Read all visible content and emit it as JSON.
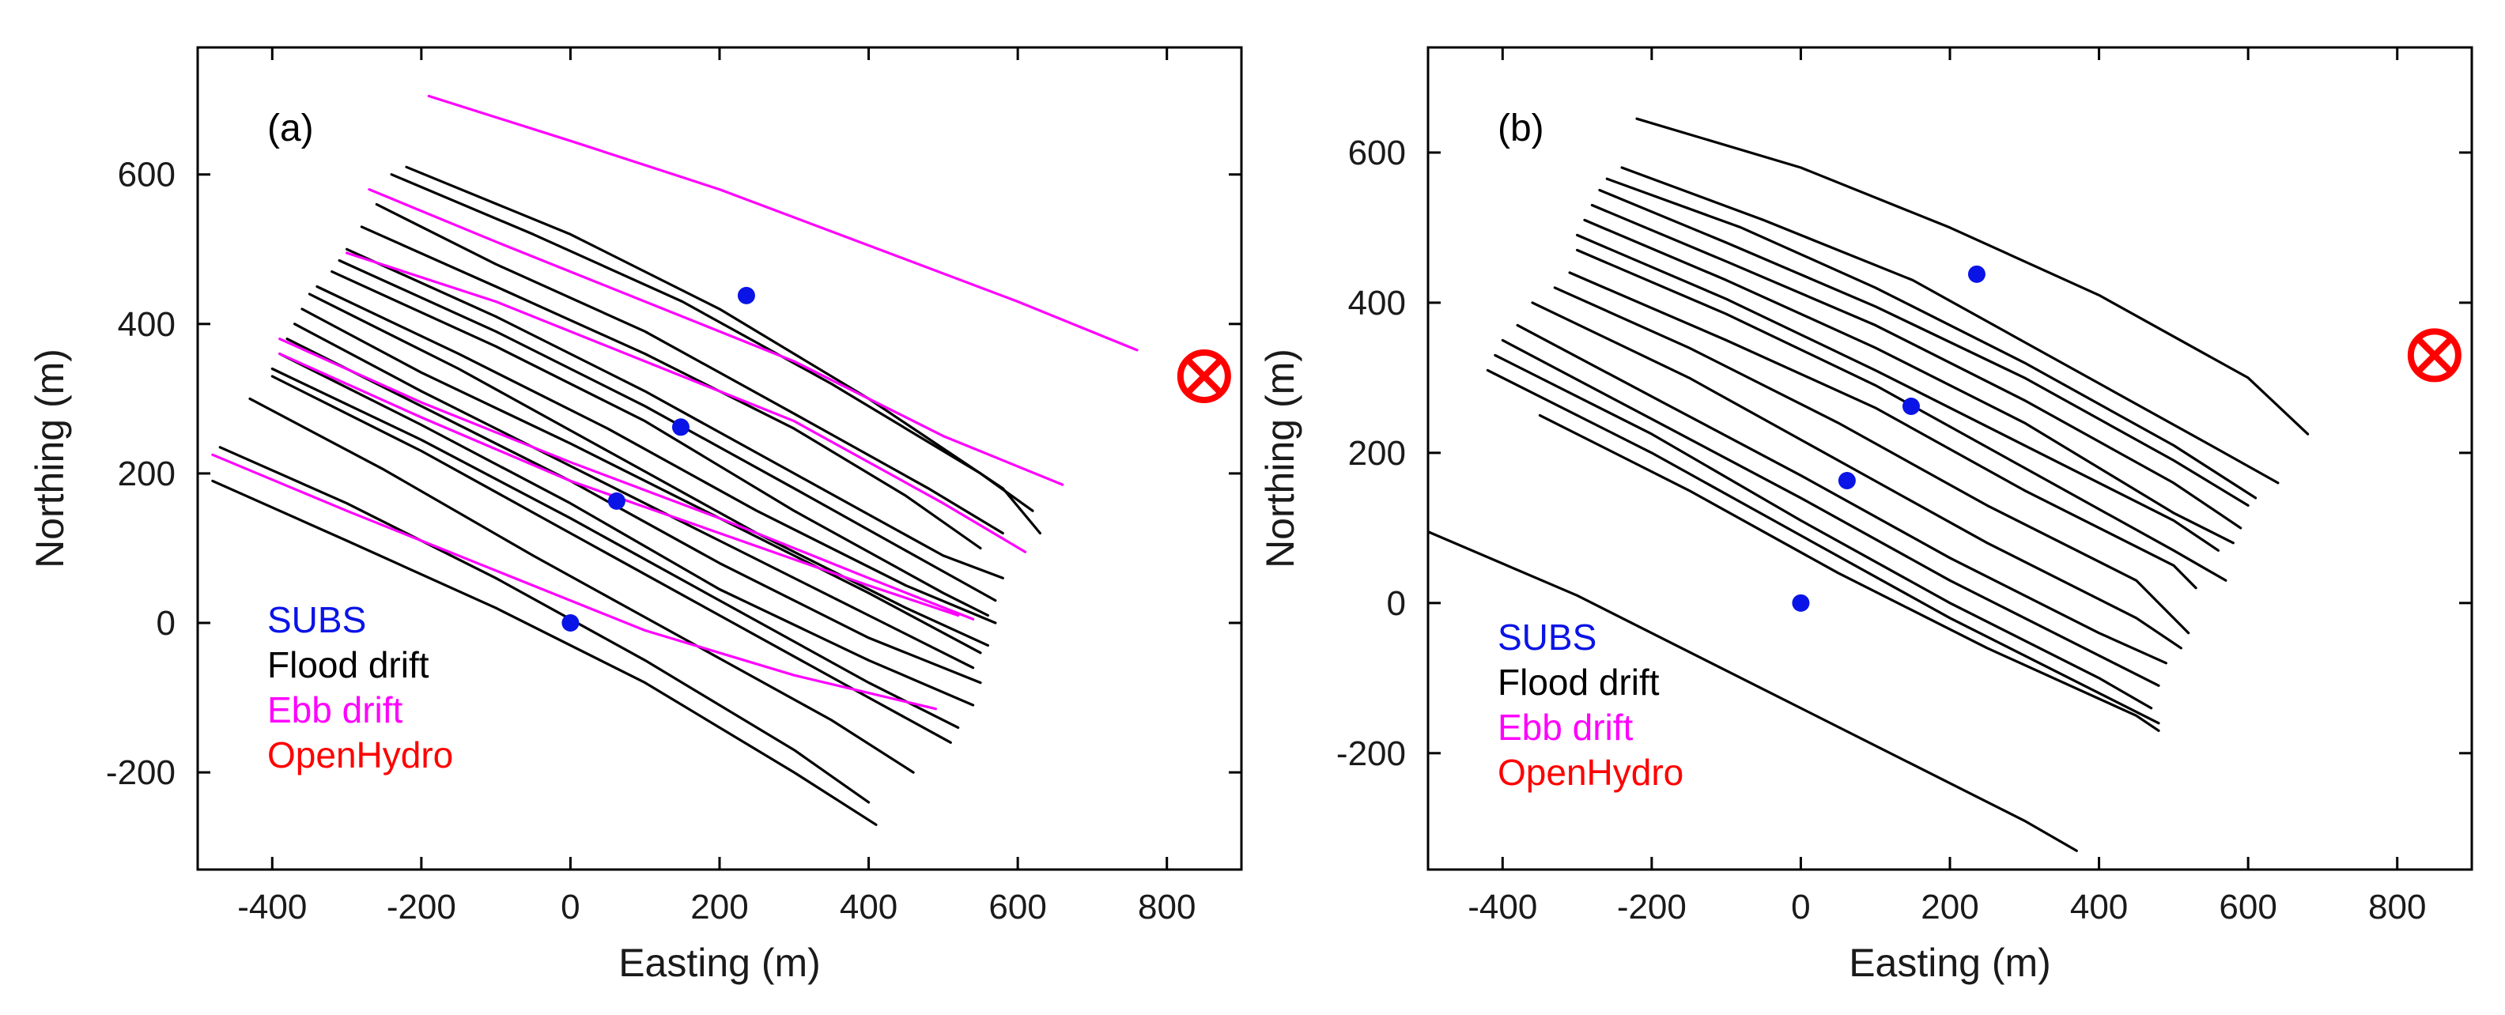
{
  "colors": {
    "subs": "#0a14e6",
    "flood": "#000000",
    "ebb": "#ff00ff",
    "openhydro": "#ff0000"
  },
  "chart_data": [
    {
      "type": "line",
      "panel_label": "(a)",
      "xlabel": "Easting (m)",
      "ylabel": "Northing (m)",
      "xlim": [
        -500,
        900
      ],
      "ylim": [
        -330,
        770
      ],
      "xticks": [
        -400,
        -200,
        0,
        200,
        400,
        600,
        800
      ],
      "yticks": [
        -200,
        0,
        200,
        400,
        600
      ],
      "grid": false,
      "legend": {
        "placement": "lower-left",
        "entries": [
          "SUBS",
          "Flood drift",
          "Ebb drift",
          "OpenHydro"
        ]
      },
      "subs_points": [
        [
          0,
          0
        ],
        [
          62,
          163
        ],
        [
          148,
          262
        ],
        [
          236,
          438
        ]
      ],
      "openhydro_marker": [
        850,
        330
      ],
      "flood_tracks": [
        [
          [
            -480,
            190
          ],
          [
            -300,
            110
          ],
          [
            -100,
            20
          ],
          [
            100,
            -80
          ],
          [
            300,
            -200
          ],
          [
            410,
            -270
          ]
        ],
        [
          [
            -470,
            235
          ],
          [
            -300,
            160
          ],
          [
            -100,
            60
          ],
          [
            100,
            -50
          ],
          [
            300,
            -170
          ],
          [
            400,
            -240
          ]
        ],
        [
          [
            -430,
            300
          ],
          [
            -250,
            205
          ],
          [
            -50,
            90
          ],
          [
            150,
            -20
          ],
          [
            350,
            -130
          ],
          [
            460,
            -200
          ]
        ],
        [
          [
            -400,
            330
          ],
          [
            -200,
            230
          ],
          [
            0,
            120
          ],
          [
            200,
            10
          ],
          [
            400,
            -100
          ],
          [
            510,
            -160
          ]
        ],
        [
          [
            -400,
            340
          ],
          [
            -200,
            245
          ],
          [
            0,
            140
          ],
          [
            200,
            30
          ],
          [
            400,
            -80
          ],
          [
            520,
            -140
          ]
        ],
        [
          [
            -390,
            360
          ],
          [
            -200,
            265
          ],
          [
            0,
            160
          ],
          [
            200,
            45
          ],
          [
            400,
            -50
          ],
          [
            540,
            -110
          ]
        ],
        [
          [
            -380,
            380
          ],
          [
            -200,
            290
          ],
          [
            0,
            190
          ],
          [
            200,
            80
          ],
          [
            400,
            -20
          ],
          [
            550,
            -80
          ]
        ],
        [
          [
            -370,
            400
          ],
          [
            -200,
            310
          ],
          [
            0,
            210
          ],
          [
            200,
            110
          ],
          [
            400,
            10
          ],
          [
            540,
            -60
          ]
        ],
        [
          [
            -360,
            420
          ],
          [
            -200,
            335
          ],
          [
            0,
            240
          ],
          [
            200,
            140
          ],
          [
            400,
            40
          ],
          [
            550,
            -40
          ]
        ],
        [
          [
            -350,
            440
          ],
          [
            -150,
            340
          ],
          [
            50,
            230
          ],
          [
            250,
            120
          ],
          [
            450,
            20
          ],
          [
            560,
            -30
          ]
        ],
        [
          [
            -340,
            450
          ],
          [
            -150,
            360
          ],
          [
            50,
            260
          ],
          [
            250,
            150
          ],
          [
            450,
            50
          ],
          [
            570,
            0
          ]
        ],
        [
          [
            -320,
            470
          ],
          [
            -100,
            370
          ],
          [
            100,
            270
          ],
          [
            300,
            150
          ],
          [
            500,
            40
          ],
          [
            560,
            10
          ]
        ],
        [
          [
            -310,
            485
          ],
          [
            -100,
            390
          ],
          [
            100,
            290
          ],
          [
            300,
            180
          ],
          [
            480,
            80
          ],
          [
            570,
            30
          ]
        ],
        [
          [
            -300,
            500
          ],
          [
            -100,
            410
          ],
          [
            100,
            310
          ],
          [
            300,
            200
          ],
          [
            500,
            90
          ],
          [
            580,
            60
          ]
        ],
        [
          [
            -280,
            530
          ],
          [
            -100,
            450
          ],
          [
            100,
            360
          ],
          [
            300,
            260
          ],
          [
            450,
            170
          ],
          [
            550,
            100
          ]
        ],
        [
          [
            -260,
            560
          ],
          [
            -100,
            480
          ],
          [
            100,
            390
          ],
          [
            300,
            280
          ],
          [
            480,
            180
          ],
          [
            580,
            120
          ]
        ],
        [
          [
            -240,
            600
          ],
          [
            -50,
            520
          ],
          [
            150,
            430
          ],
          [
            350,
            320
          ],
          [
            550,
            200
          ],
          [
            620,
            150
          ]
        ],
        [
          [
            -220,
            610
          ],
          [
            0,
            520
          ],
          [
            200,
            420
          ],
          [
            400,
            300
          ],
          [
            580,
            180
          ],
          [
            630,
            120
          ]
        ]
      ],
      "ebb_tracks": [
        [
          [
            -480,
            225
          ],
          [
            -300,
            150
          ],
          [
            -100,
            70
          ],
          [
            100,
            -10
          ],
          [
            300,
            -70
          ],
          [
            490,
            -115
          ]
        ],
        [
          [
            -390,
            360
          ],
          [
            -200,
            275
          ],
          [
            0,
            190
          ],
          [
            200,
            120
          ],
          [
            400,
            50
          ],
          [
            520,
            10
          ]
        ],
        [
          [
            -390,
            380
          ],
          [
            -200,
            295
          ],
          [
            0,
            215
          ],
          [
            200,
            140
          ],
          [
            400,
            60
          ],
          [
            540,
            5
          ]
        ],
        [
          [
            -300,
            495
          ],
          [
            -100,
            430
          ],
          [
            100,
            350
          ],
          [
            300,
            270
          ],
          [
            500,
            160
          ],
          [
            610,
            95
          ]
        ],
        [
          [
            -270,
            580
          ],
          [
            -100,
            510
          ],
          [
            100,
            430
          ],
          [
            300,
            350
          ],
          [
            500,
            250
          ],
          [
            660,
            185
          ]
        ],
        [
          [
            -190,
            705
          ],
          [
            0,
            645
          ],
          [
            200,
            580
          ],
          [
            400,
            505
          ],
          [
            600,
            430
          ],
          [
            760,
            365
          ]
        ]
      ]
    },
    {
      "type": "line",
      "panel_label": "(b)",
      "xlabel": "Easting (m)",
      "ylabel": "Northing (m)",
      "xlim": [
        -500,
        900
      ],
      "ylim": [
        -355,
        740
      ],
      "xticks": [
        -400,
        -200,
        0,
        200,
        400,
        600,
        800
      ],
      "yticks": [
        -200,
        0,
        200,
        400,
        600
      ],
      "grid": false,
      "legend": {
        "placement": "lower-left",
        "entries": [
          "SUBS",
          "Flood drift",
          "Ebb drift",
          "OpenHydro"
        ]
      },
      "subs_points": [
        [
          0,
          0
        ],
        [
          62,
          163
        ],
        [
          148,
          262
        ],
        [
          236,
          438
        ]
      ],
      "openhydro_marker": [
        850,
        330
      ],
      "flood_tracks": [
        [
          [
            -500,
            95
          ],
          [
            -300,
            10
          ],
          [
            -100,
            -90
          ],
          [
            100,
            -190
          ],
          [
            300,
            -290
          ],
          [
            370,
            -330
          ]
        ],
        [
          [
            -350,
            250
          ],
          [
            -150,
            150
          ],
          [
            50,
            40
          ],
          [
            250,
            -60
          ],
          [
            450,
            -150
          ],
          [
            480,
            -170
          ]
        ],
        [
          [
            -420,
            310
          ],
          [
            -200,
            200
          ],
          [
            0,
            90
          ],
          [
            200,
            -20
          ],
          [
            400,
            -120
          ],
          [
            480,
            -160
          ]
        ],
        [
          [
            -410,
            330
          ],
          [
            -200,
            225
          ],
          [
            0,
            110
          ],
          [
            200,
            0
          ],
          [
            400,
            -100
          ],
          [
            470,
            -140
          ]
        ],
        [
          [
            -400,
            350
          ],
          [
            -200,
            245
          ],
          [
            0,
            140
          ],
          [
            200,
            30
          ],
          [
            400,
            -70
          ],
          [
            480,
            -110
          ]
        ],
        [
          [
            -380,
            370
          ],
          [
            -200,
            275
          ],
          [
            0,
            170
          ],
          [
            200,
            60
          ],
          [
            400,
            -40
          ],
          [
            490,
            -80
          ]
        ],
        [
          [
            -360,
            400
          ],
          [
            -150,
            300
          ],
          [
            50,
            190
          ],
          [
            250,
            80
          ],
          [
            450,
            -20
          ],
          [
            510,
            -60
          ]
        ],
        [
          [
            -330,
            420
          ],
          [
            -150,
            340
          ],
          [
            50,
            240
          ],
          [
            250,
            130
          ],
          [
            450,
            30
          ],
          [
            520,
            -40
          ]
        ],
        [
          [
            -310,
            440
          ],
          [
            -100,
            350
          ],
          [
            100,
            260
          ],
          [
            300,
            150
          ],
          [
            500,
            50
          ],
          [
            530,
            20
          ]
        ],
        [
          [
            -300,
            470
          ],
          [
            -100,
            385
          ],
          [
            100,
            290
          ],
          [
            300,
            180
          ],
          [
            500,
            70
          ],
          [
            570,
            30
          ]
        ],
        [
          [
            -300,
            490
          ],
          [
            -100,
            405
          ],
          [
            100,
            310
          ],
          [
            300,
            210
          ],
          [
            500,
            110
          ],
          [
            560,
            70
          ]
        ],
        [
          [
            -290,
            510
          ],
          [
            -100,
            430
          ],
          [
            100,
            340
          ],
          [
            300,
            240
          ],
          [
            500,
            120
          ],
          [
            580,
            80
          ]
        ],
        [
          [
            -280,
            530
          ],
          [
            -100,
            455
          ],
          [
            100,
            370
          ],
          [
            300,
            270
          ],
          [
            500,
            160
          ],
          [
            590,
            100
          ]
        ],
        [
          [
            -270,
            550
          ],
          [
            -100,
            480
          ],
          [
            100,
            395
          ],
          [
            300,
            300
          ],
          [
            500,
            190
          ],
          [
            600,
            130
          ]
        ],
        [
          [
            -260,
            565
          ],
          [
            -80,
            500
          ],
          [
            100,
            420
          ],
          [
            300,
            320
          ],
          [
            500,
            210
          ],
          [
            610,
            140
          ]
        ],
        [
          [
            -240,
            580
          ],
          [
            -50,
            510
          ],
          [
            150,
            430
          ],
          [
            350,
            320
          ],
          [
            550,
            210
          ],
          [
            640,
            160
          ]
        ],
        [
          [
            -220,
            645
          ],
          [
            0,
            580
          ],
          [
            200,
            500
          ],
          [
            400,
            410
          ],
          [
            600,
            300
          ],
          [
            680,
            225
          ]
        ]
      ],
      "ebb_tracks": []
    }
  ]
}
